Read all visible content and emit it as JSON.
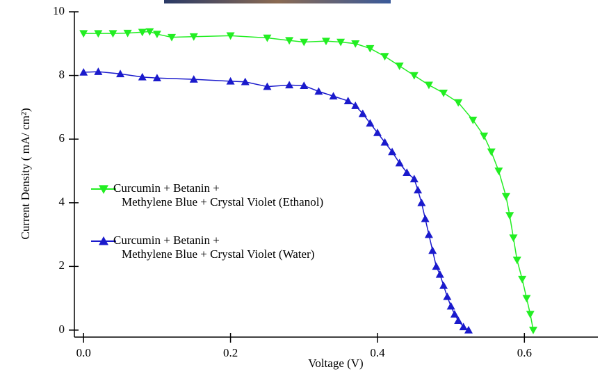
{
  "chart_data": {
    "type": "line",
    "xlabel": "Voltage (V)",
    "ylabel": "Current Density ( mA/ cm²)",
    "xlim": [
      -0.0125,
      0.7
    ],
    "ylim": [
      -0.22,
      10
    ],
    "xticks": [
      {
        "value": 0,
        "label": "0.0"
      },
      0.2,
      0.4,
      0.6
    ],
    "yticks": [
      0,
      2,
      4,
      6,
      8,
      10
    ],
    "series": [
      {
        "name": "Curcumin + Betanin +\nMethylene Blue + Crystal Violet (Ethanol)",
        "color": "#22ee22",
        "marker": "down",
        "x": [
          0,
          0.02,
          0.04,
          0.06,
          0.08,
          0.09,
          0.1,
          0.12,
          0.15,
          0.2,
          0.25,
          0.28,
          0.3,
          0.33,
          0.35,
          0.37,
          0.39,
          0.41,
          0.43,
          0.45,
          0.47,
          0.49,
          0.51,
          0.53,
          0.545,
          0.555,
          0.565,
          0.575,
          0.58,
          0.585,
          0.59,
          0.597,
          0.603,
          0.608,
          0.612
        ],
        "values": [
          9.32,
          9.32,
          9.32,
          9.33,
          9.36,
          9.38,
          9.3,
          9.2,
          9.22,
          9.25,
          9.18,
          9.1,
          9.05,
          9.08,
          9.05,
          9.0,
          8.85,
          8.6,
          8.3,
          8.0,
          7.7,
          7.45,
          7.15,
          6.6,
          6.1,
          5.6,
          5.0,
          4.2,
          3.6,
          2.9,
          2.2,
          1.6,
          1.0,
          0.5,
          0.0
        ]
      },
      {
        "name": "Curcumin + Betanin +\nMethylene Blue + Crystal Violet (Water)",
        "color": "#1a1acc",
        "marker": "up",
        "x": [
          0,
          0.02,
          0.05,
          0.08,
          0.1,
          0.15,
          0.2,
          0.22,
          0.25,
          0.28,
          0.3,
          0.32,
          0.34,
          0.36,
          0.37,
          0.38,
          0.39,
          0.4,
          0.41,
          0.42,
          0.43,
          0.44,
          0.45,
          0.455,
          0.46,
          0.465,
          0.47,
          0.475,
          0.48,
          0.485,
          0.49,
          0.495,
          0.5,
          0.505,
          0.51,
          0.517,
          0.524
        ],
        "values": [
          8.1,
          8.12,
          8.05,
          7.95,
          7.92,
          7.88,
          7.82,
          7.8,
          7.65,
          7.7,
          7.68,
          7.5,
          7.35,
          7.2,
          7.05,
          6.8,
          6.5,
          6.2,
          5.9,
          5.6,
          5.25,
          4.95,
          4.75,
          4.4,
          4.0,
          3.5,
          3.0,
          2.5,
          2.0,
          1.75,
          1.4,
          1.05,
          0.75,
          0.5,
          0.3,
          0.1,
          0.0
        ]
      }
    ]
  }
}
